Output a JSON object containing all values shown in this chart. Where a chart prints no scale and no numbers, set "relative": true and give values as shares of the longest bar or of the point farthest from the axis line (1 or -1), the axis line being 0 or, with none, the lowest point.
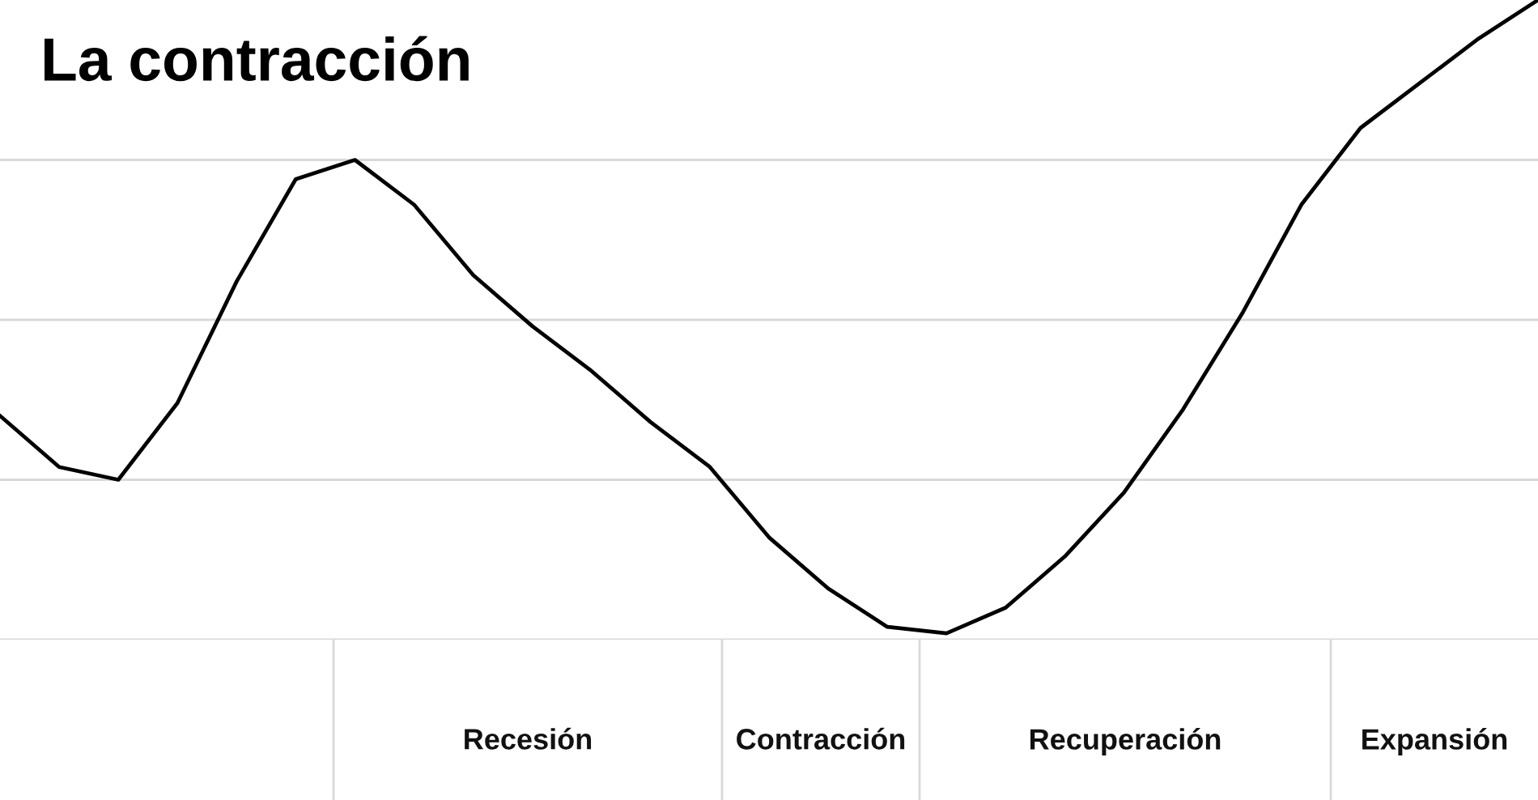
{
  "chart_data": {
    "type": "line",
    "title": "La contracción",
    "relative": true,
    "categories": [
      null,
      null,
      null,
      null,
      null,
      null,
      null,
      null,
      null,
      null,
      null,
      null,
      null,
      null,
      null,
      null,
      null,
      null,
      null,
      null,
      null,
      null,
      null,
      null,
      null,
      null,
      null
    ],
    "series": [
      {
        "color": "#000000",
        "values": [
          0.35,
          0.27,
          0.25,
          0.37,
          0.56,
          0.72,
          0.75,
          0.68,
          0.57,
          0.49,
          0.42,
          0.34,
          0.27,
          0.16,
          0.08,
          0.02,
          0.01,
          0.05,
          0.13,
          0.23,
          0.36,
          0.51,
          0.68,
          0.8,
          0.87,
          0.94,
          1.0
        ]
      }
    ],
    "annotations": [
      "Recesión",
      "Contracción",
      "Recuperación",
      "Expansión"
    ],
    "grid": true,
    "marker": "none",
    "line_style": "solid"
  }
}
